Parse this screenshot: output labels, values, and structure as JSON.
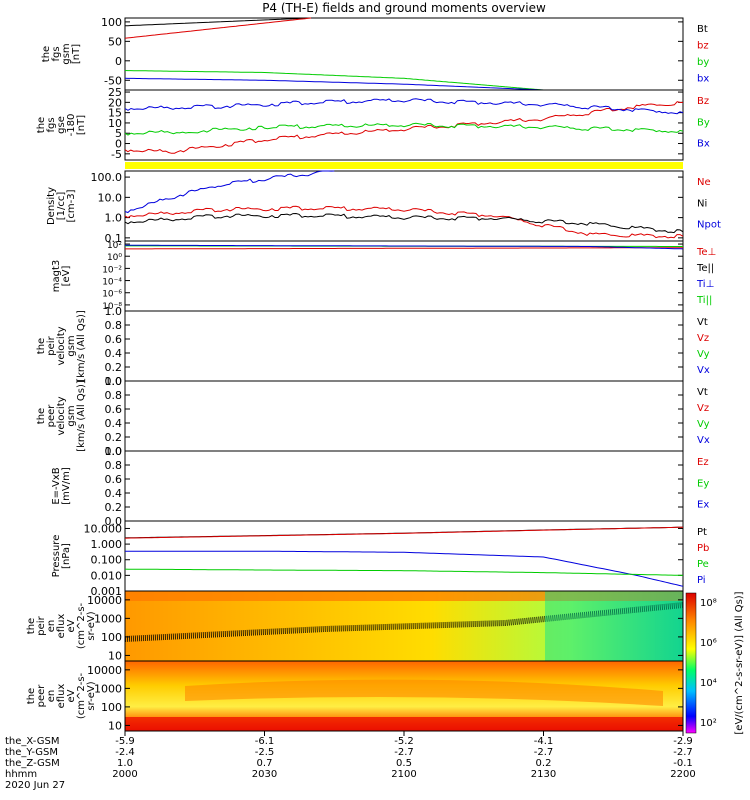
{
  "title": "P4 (TH-E) fields and ground moments overview",
  "colors": {
    "black": "#000000",
    "red": "#dd0000",
    "green": "#00cc00",
    "blue": "#0000dd",
    "yellow": "#ffff00"
  },
  "panels": [
    {
      "key": "fgs",
      "ylabel": [
        "the",
        "fgs",
        "gsm",
        "[nT]"
      ],
      "ticks": [
        "100",
        "50",
        "0",
        "-50"
      ],
      "tick_values": [
        100,
        50,
        0,
        -50
      ],
      "ylim": [
        -75,
        110
      ],
      "scale": "linear",
      "legend": [
        {
          "text": "Bt",
          "color": "#000000"
        },
        {
          "text": "bz",
          "color": "#dd0000"
        },
        {
          "text": "by",
          "color": "#00cc00"
        },
        {
          "text": "bx",
          "color": "#0000dd"
        }
      ]
    },
    {
      "key": "fgm",
      "ylabel": [
        "the",
        "fgs",
        "gse",
        "-180",
        "[nT]"
      ],
      "ticks": [
        "25",
        "20",
        "15",
        "10",
        "5",
        "0",
        "-5"
      ],
      "tick_values": [
        25,
        20,
        15,
        10,
        5,
        0,
        -5
      ],
      "ylim": [
        -8,
        26
      ],
      "scale": "linear",
      "legend": [
        {
          "text": "Bz",
          "color": "#dd0000"
        },
        {
          "text": "By",
          "color": "#00cc00"
        },
        {
          "text": "Bx",
          "color": "#0000dd"
        }
      ]
    },
    {
      "key": "density",
      "ylabel": [
        "Density",
        "[1/cc]",
        "[cm-3]"
      ],
      "ticks": [
        "100.0",
        "10.0",
        "1.0",
        "0.1"
      ],
      "tick_values": [
        100,
        10,
        1,
        0.1
      ],
      "ylim": [
        0.07,
        200
      ],
      "scale": "log",
      "legend": [
        {
          "text": "Ne",
          "color": "#dd0000"
        },
        {
          "text": "Ni",
          "color": "#000000"
        },
        {
          "text": "Npot",
          "color": "#0000dd"
        }
      ]
    },
    {
      "key": "temp",
      "ylabel": [
        "magt3",
        "[eV]"
      ],
      "ticks": [
        "10²",
        "10⁰",
        "10⁻²",
        "10⁻⁴",
        "10⁻⁶",
        "10⁻⁸"
      ],
      "tick_values": [
        2,
        0,
        -2,
        -4,
        -6,
        -8
      ],
      "ylim": [
        -9,
        2.5
      ],
      "scale": "linear",
      "legend": [
        {
          "text": "Te⊥",
          "color": "#dd0000"
        },
        {
          "text": "Te||",
          "color": "#000000"
        },
        {
          "text": "Ti⊥",
          "color": "#0000dd"
        },
        {
          "text": "Ti||",
          "color": "#00cc00"
        }
      ]
    },
    {
      "key": "peir_vel",
      "ylabel": [
        "the",
        "peir",
        "velocity",
        "gsm",
        "[km/s (All Qs)]"
      ],
      "ticks": [
        "1.0",
        "0.8",
        "0.6",
        "0.4",
        "0.2",
        "0.0"
      ],
      "tick_values": [
        1,
        0.8,
        0.6,
        0.4,
        0.2,
        0
      ],
      "ylim": [
        0,
        1
      ],
      "scale": "linear",
      "legend": [
        {
          "text": "Vt",
          "color": "#000000"
        },
        {
          "text": "Vz",
          "color": "#dd0000"
        },
        {
          "text": "Vy",
          "color": "#00cc00"
        },
        {
          "text": "Vx",
          "color": "#0000dd"
        }
      ]
    },
    {
      "key": "peer_vel",
      "ylabel": [
        "the",
        "peer",
        "velocity",
        "gsm",
        "[km/s (All Qs)]"
      ],
      "ticks": [
        "1.0",
        "0.8",
        "0.6",
        "0.4",
        "0.2",
        "0.0"
      ],
      "tick_values": [
        1,
        0.8,
        0.6,
        0.4,
        0.2,
        0
      ],
      "ylim": [
        0,
        1
      ],
      "scale": "linear",
      "legend": [
        {
          "text": "Vt",
          "color": "#000000"
        },
        {
          "text": "Vz",
          "color": "#dd0000"
        },
        {
          "text": "Vy",
          "color": "#00cc00"
        },
        {
          "text": "Vx",
          "color": "#0000dd"
        }
      ]
    },
    {
      "key": "efield",
      "ylabel": [
        "E=-VxB",
        "[mV/m]"
      ],
      "ticks": [
        "1.0",
        "0.8",
        "0.6",
        "0.4",
        "0.2",
        "0.0"
      ],
      "tick_values": [
        1,
        0.8,
        0.6,
        0.4,
        0.2,
        0
      ],
      "ylim": [
        0,
        1
      ],
      "scale": "linear",
      "legend": [
        {
          "text": "Ez",
          "color": "#dd0000"
        },
        {
          "text": "Ey",
          "color": "#00cc00"
        },
        {
          "text": "Ex",
          "color": "#0000dd"
        }
      ]
    },
    {
      "key": "pressure",
      "ylabel": [
        "Pressure",
        "[nPa]"
      ],
      "ticks": [
        "10.000",
        "1.000",
        "0.100",
        "0.010",
        "0.001"
      ],
      "tick_values": [
        10,
        1,
        0.1,
        0.01,
        0.001
      ],
      "ylim": [
        0.001,
        30
      ],
      "scale": "log",
      "legend": [
        {
          "text": "Pt",
          "color": "#000000"
        },
        {
          "text": "Pb",
          "color": "#dd0000"
        },
        {
          "text": "Pe",
          "color": "#00cc00"
        },
        {
          "text": "Pi",
          "color": "#0000dd"
        }
      ]
    },
    {
      "key": "peir_spec",
      "ylabel": [
        "the",
        "peir",
        "en",
        "eflux",
        "eV",
        "(cm^2-s-",
        "sr-eV)"
      ],
      "ticks": [
        "10000",
        "1000",
        "100",
        "10"
      ],
      "tick_values": [
        10000,
        1000,
        100,
        10
      ],
      "ylim": [
        5,
        30000
      ],
      "scale": "log",
      "legend": []
    },
    {
      "key": "peer_spec",
      "ylabel": [
        "the",
        "peer",
        "en",
        "eflux",
        "eV",
        "(cm^2-s-",
        "sr-eV)"
      ],
      "ticks": [
        "10000",
        "1000",
        "100",
        "10"
      ],
      "tick_values": [
        10000,
        1000,
        100,
        10
      ],
      "ylim": [
        5,
        30000
      ],
      "scale": "log",
      "legend": []
    }
  ],
  "colorbar": {
    "ticks": [
      "10⁸",
      "10⁶",
      "10⁴",
      "10²"
    ],
    "label": "[eV/(cm^2-s-sr-eV)] (All Qs)]"
  },
  "x_axis": {
    "row_labels": [
      "the_X-GSM",
      "the_Y-GSM",
      "the_Z-GSM",
      "hhmm",
      "2020 Jun 27"
    ],
    "ticks": [
      {
        "x": "-5.9",
        "y": "-2.4",
        "z": "1.0",
        "hhmm": "2000"
      },
      {
        "x": "-6.1",
        "y": "-2.5",
        "z": "0.7",
        "hhmm": "2030"
      },
      {
        "x": "-5.2",
        "y": "-2.7",
        "z": "0.5",
        "hhmm": "2100"
      },
      {
        "x": "-4.1",
        "y": "-2.7",
        "z": "0.2",
        "hhmm": "2130"
      },
      {
        "x": "-2.9",
        "y": "-2.7",
        "z": "-0.1",
        "hhmm": "2200"
      }
    ]
  },
  "chart_data": {
    "type": "line",
    "title": "P4 (TH-E) fields and ground moments overview",
    "x_range_hhmm": [
      "2000",
      "2200"
    ],
    "series": [
      {
        "panel": "fgs",
        "name": "Bt",
        "x": [
          0,
          40
        ],
        "values": [
          90,
          110
        ]
      },
      {
        "panel": "fgs",
        "name": "bz",
        "x": [
          0,
          40
        ],
        "values": [
          58,
          110
        ]
      },
      {
        "panel": "fgs",
        "name": "by",
        "x": [
          0,
          30,
          60,
          90,
          120
        ],
        "values": [
          -25,
          -30,
          -45,
          -75,
          -80
        ]
      },
      {
        "panel": "fgs",
        "name": "bx",
        "x": [
          0,
          30,
          60,
          90,
          120
        ],
        "values": [
          -45,
          -50,
          -60,
          -75,
          -80
        ]
      },
      {
        "panel": "fgm",
        "name": "Bz",
        "x": [
          0,
          10,
          30,
          60,
          90,
          110,
          120
        ],
        "values": [
          -3,
          -4,
          2,
          7,
          12,
          18,
          20
        ]
      },
      {
        "panel": "fgm",
        "name": "By",
        "x": [
          0,
          15,
          30,
          60,
          90,
          120
        ],
        "values": [
          5,
          6,
          8,
          9,
          8,
          6
        ]
      },
      {
        "panel": "fgm",
        "name": "Bx",
        "x": [
          0,
          20,
          40,
          60,
          90,
          120
        ],
        "values": [
          17,
          18,
          20,
          21,
          19,
          15
        ]
      },
      {
        "panel": "density",
        "name": "Npot",
        "x": [
          0,
          10,
          20,
          30,
          40,
          45
        ],
        "values": [
          2,
          10,
          40,
          80,
          150,
          200
        ]
      },
      {
        "panel": "density",
        "name": "Ne",
        "x": [
          0,
          20,
          40,
          60,
          80,
          100,
          120
        ],
        "values": [
          1.2,
          2.5,
          3,
          2.5,
          1.2,
          0.15,
          0.12
        ]
      },
      {
        "panel": "density",
        "name": "Ni",
        "x": [
          0,
          20,
          40,
          60,
          80,
          100,
          120
        ],
        "values": [
          0.6,
          1.2,
          1.3,
          1.0,
          0.9,
          0.5,
          0.2
        ]
      },
      {
        "panel": "temp",
        "name": "Te⊥",
        "x": [
          0,
          120
        ],
        "values": [
          1.2,
          1.4
        ]
      },
      {
        "panel": "temp",
        "name": "Ti||",
        "x": [
          0,
          120
        ],
        "values": [
          1.7,
          1.6
        ]
      },
      {
        "panel": "temp",
        "name": "Ti⊥",
        "x": [
          0,
          100,
          120
        ],
        "values": [
          1.8,
          1.6,
          1.2
        ]
      },
      {
        "panel": "pressure",
        "name": "Pt",
        "x": [
          0,
          30,
          60,
          90,
          120
        ],
        "values": [
          2.5,
          3.5,
          5,
          8,
          12
        ]
      },
      {
        "panel": "pressure",
        "name": "Pb",
        "x": [
          0,
          30,
          60,
          90,
          120
        ],
        "values": [
          2.4,
          3.4,
          4.9,
          7.8,
          12
        ]
      },
      {
        "panel": "pressure",
        "name": "Pi",
        "x": [
          0,
          30,
          60,
          90,
          110,
          120
        ],
        "values": [
          0.35,
          0.35,
          0.3,
          0.15,
          0.01,
          0.002
        ]
      },
      {
        "panel": "pressure",
        "name": "Pe",
        "x": [
          0,
          30,
          60,
          90,
          120
        ],
        "values": [
          0.025,
          0.022,
          0.02,
          0.015,
          0.01
        ]
      }
    ]
  }
}
